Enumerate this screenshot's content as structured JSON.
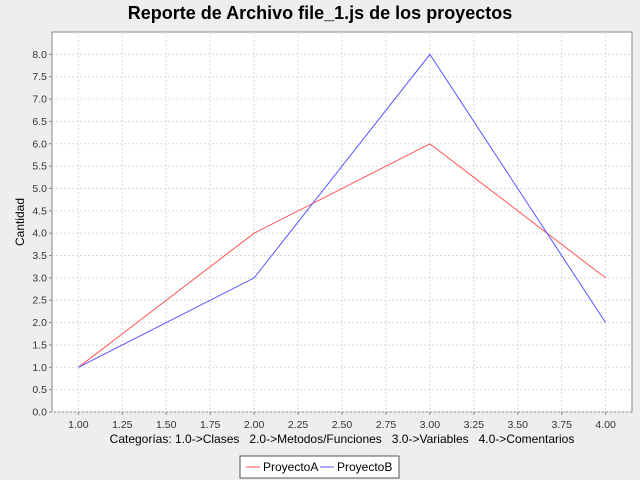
{
  "chart_data": {
    "type": "line",
    "title": "Reporte de Archivo file_1.js de los proyectos",
    "xlabel": "Categorías: 1.0->Clases   2.0->Metodos/Funciones   3.0->Variables   4.0->Comentarios",
    "ylabel": "Cantidad",
    "x": [
      1.0,
      2.0,
      3.0,
      4.0
    ],
    "series": [
      {
        "name": "ProyectoA",
        "color": "#ff5555",
        "values": [
          1.0,
          4.0,
          6.0,
          3.0
        ]
      },
      {
        "name": "ProyectoB",
        "color": "#5555ff",
        "values": [
          1.0,
          3.0,
          8.0,
          2.0
        ]
      }
    ],
    "xlim": [
      0.85,
      4.15
    ],
    "ylim": [
      0.0,
      8.5
    ],
    "xticks": [
      "1.00",
      "1.25",
      "1.50",
      "1.75",
      "2.00",
      "2.25",
      "2.50",
      "2.75",
      "3.00",
      "3.25",
      "3.50",
      "3.75",
      "4.00"
    ],
    "yticks": [
      "0.0",
      "0.5",
      "1.0",
      "1.5",
      "2.0",
      "2.5",
      "3.0",
      "3.5",
      "4.0",
      "4.5",
      "5.0",
      "5.5",
      "6.0",
      "6.5",
      "7.0",
      "7.5",
      "8.0"
    ],
    "grid": true,
    "legend_position": "bottom"
  }
}
